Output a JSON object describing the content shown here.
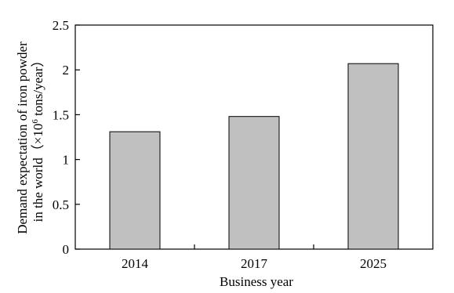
{
  "chart_data": {
    "type": "bar",
    "categories": [
      "2014",
      "2017",
      "2025"
    ],
    "values": [
      1.31,
      1.48,
      2.07
    ],
    "xlabel": "Business year",
    "ylabel_line1": "Demand expectation of iron powder",
    "ylabel_line2_prefix": "in the world（×10",
    "ylabel_line2_exp": "6",
    "ylabel_line2_suffix": " tons/year）",
    "ylim": [
      0,
      2.5
    ],
    "yticks": [
      "0",
      "0.5",
      "1",
      "1.5",
      "2",
      "2.5"
    ],
    "grid": false,
    "legend": "none",
    "bar_color": "#c0c0c0",
    "bar_stroke": "#000000"
  }
}
